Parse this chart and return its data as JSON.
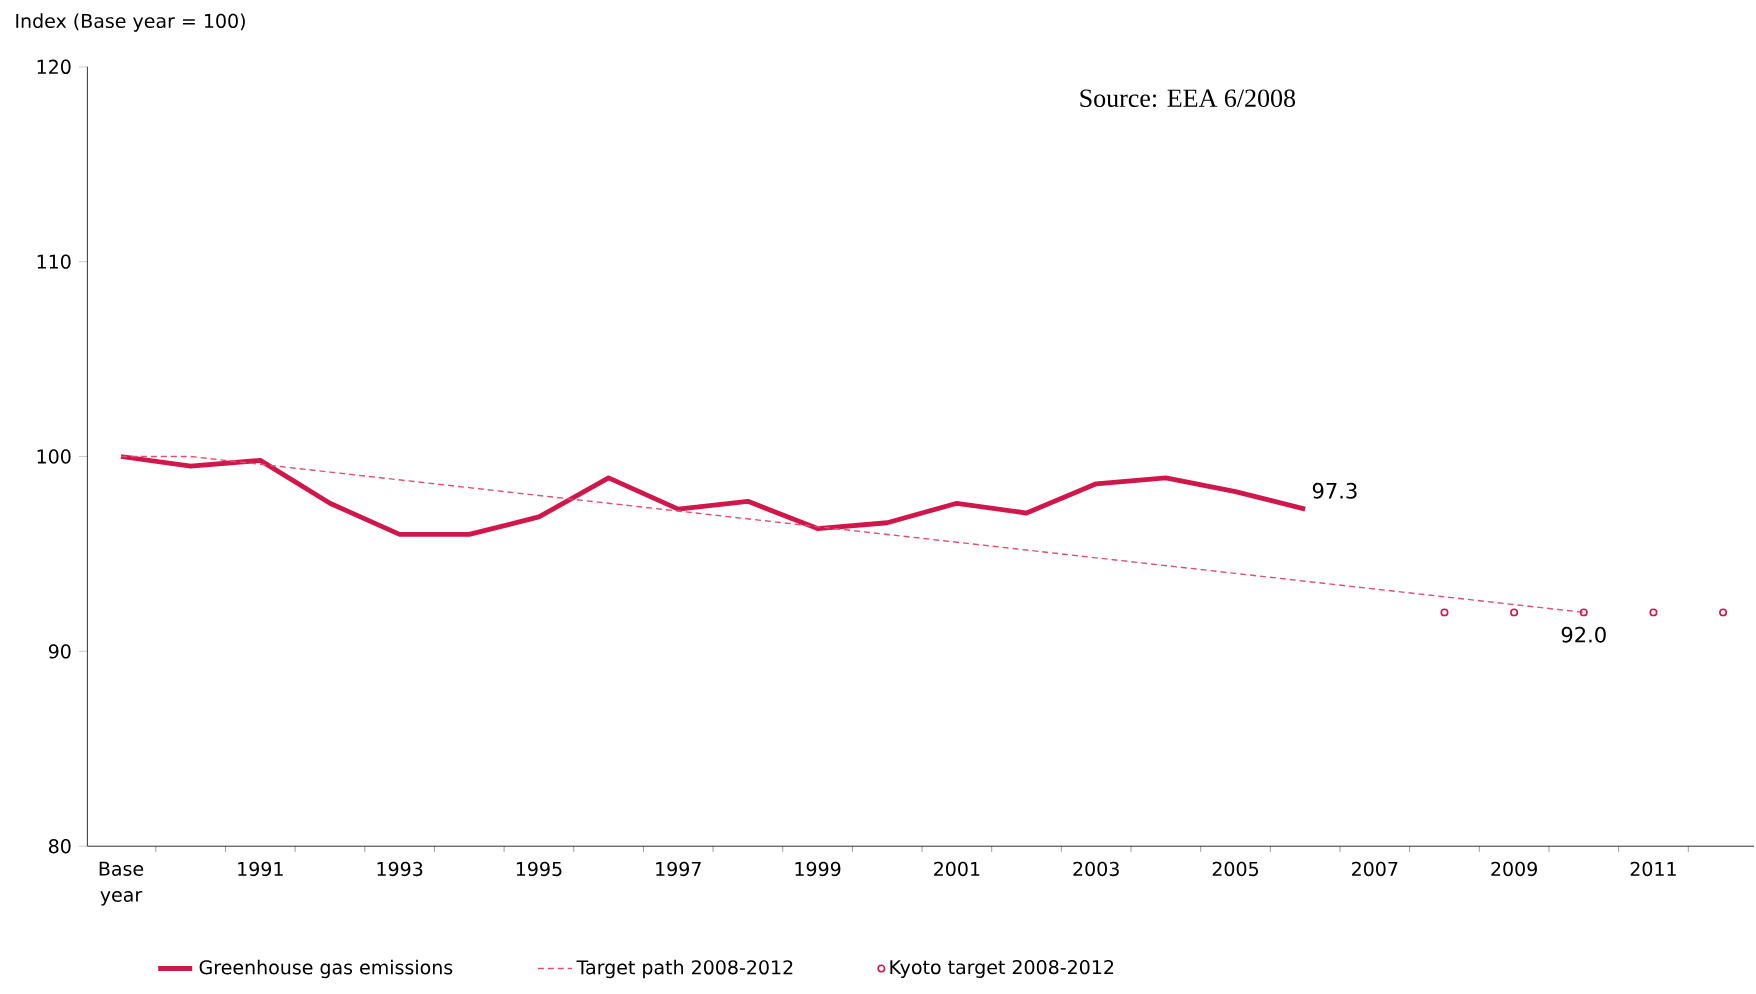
{
  "chart_data": {
    "type": "line",
    "ylabel": "Index (Base year = 100)",
    "annotations": [
      "Source: EEA 6/2008"
    ],
    "categories": [
      "Base year",
      null,
      "1991",
      null,
      "1993",
      null,
      "1995",
      null,
      "1997",
      null,
      "1999",
      null,
      "2001",
      null,
      "2003",
      null,
      "2005",
      null,
      "2007",
      null,
      "2009",
      null,
      "2011",
      null
    ],
    "ylim": [
      80,
      120
    ],
    "yticks": [
      80,
      90,
      100,
      110,
      120
    ],
    "grid": false,
    "legend": "bottom",
    "series": [
      {
        "name": "Greenhouse gas emissions",
        "type": "line",
        "line_style": "solid",
        "color": "#d0164a",
        "values": [
          100,
          99.5,
          99.8,
          97.6,
          96.0,
          96.0,
          96.9,
          98.9,
          97.3,
          97.7,
          96.3,
          96.6,
          97.6,
          97.1,
          98.6,
          98.9,
          98.2,
          97.3,
          null,
          null,
          null,
          null,
          null,
          null
        ],
        "value_labels": [
          null,
          null,
          null,
          null,
          null,
          null,
          null,
          null,
          null,
          null,
          null,
          null,
          null,
          null,
          null,
          null,
          null,
          "97.3",
          null,
          null,
          null,
          null,
          null,
          null
        ]
      },
      {
        "name": "Target path 2008-2012",
        "type": "line",
        "line_style": "dashed",
        "color": "#e0506e",
        "values": [
          100,
          100,
          99.6,
          99.2,
          98.8,
          98.4,
          98.0,
          97.6,
          97.2,
          96.8,
          96.4,
          96.0,
          95.6,
          95.2,
          94.8,
          94.4,
          94.0,
          93.6,
          93.2,
          92.8,
          92.4,
          92.0,
          null,
          null
        ]
      },
      {
        "name": "Kyoto target 2008-2012",
        "type": "scatter",
        "marker": "circle",
        "color": "#d0164a",
        "values": [
          null,
          null,
          null,
          null,
          null,
          null,
          null,
          null,
          null,
          null,
          null,
          null,
          null,
          null,
          null,
          null,
          null,
          null,
          null,
          92.0,
          92.0,
          92.0,
          92.0,
          92.0
        ],
        "value_labels": [
          null,
          null,
          null,
          null,
          null,
          null,
          null,
          null,
          null,
          null,
          null,
          null,
          null,
          null,
          null,
          null,
          null,
          null,
          null,
          null,
          null,
          "92.0",
          null,
          null
        ]
      }
    ]
  }
}
